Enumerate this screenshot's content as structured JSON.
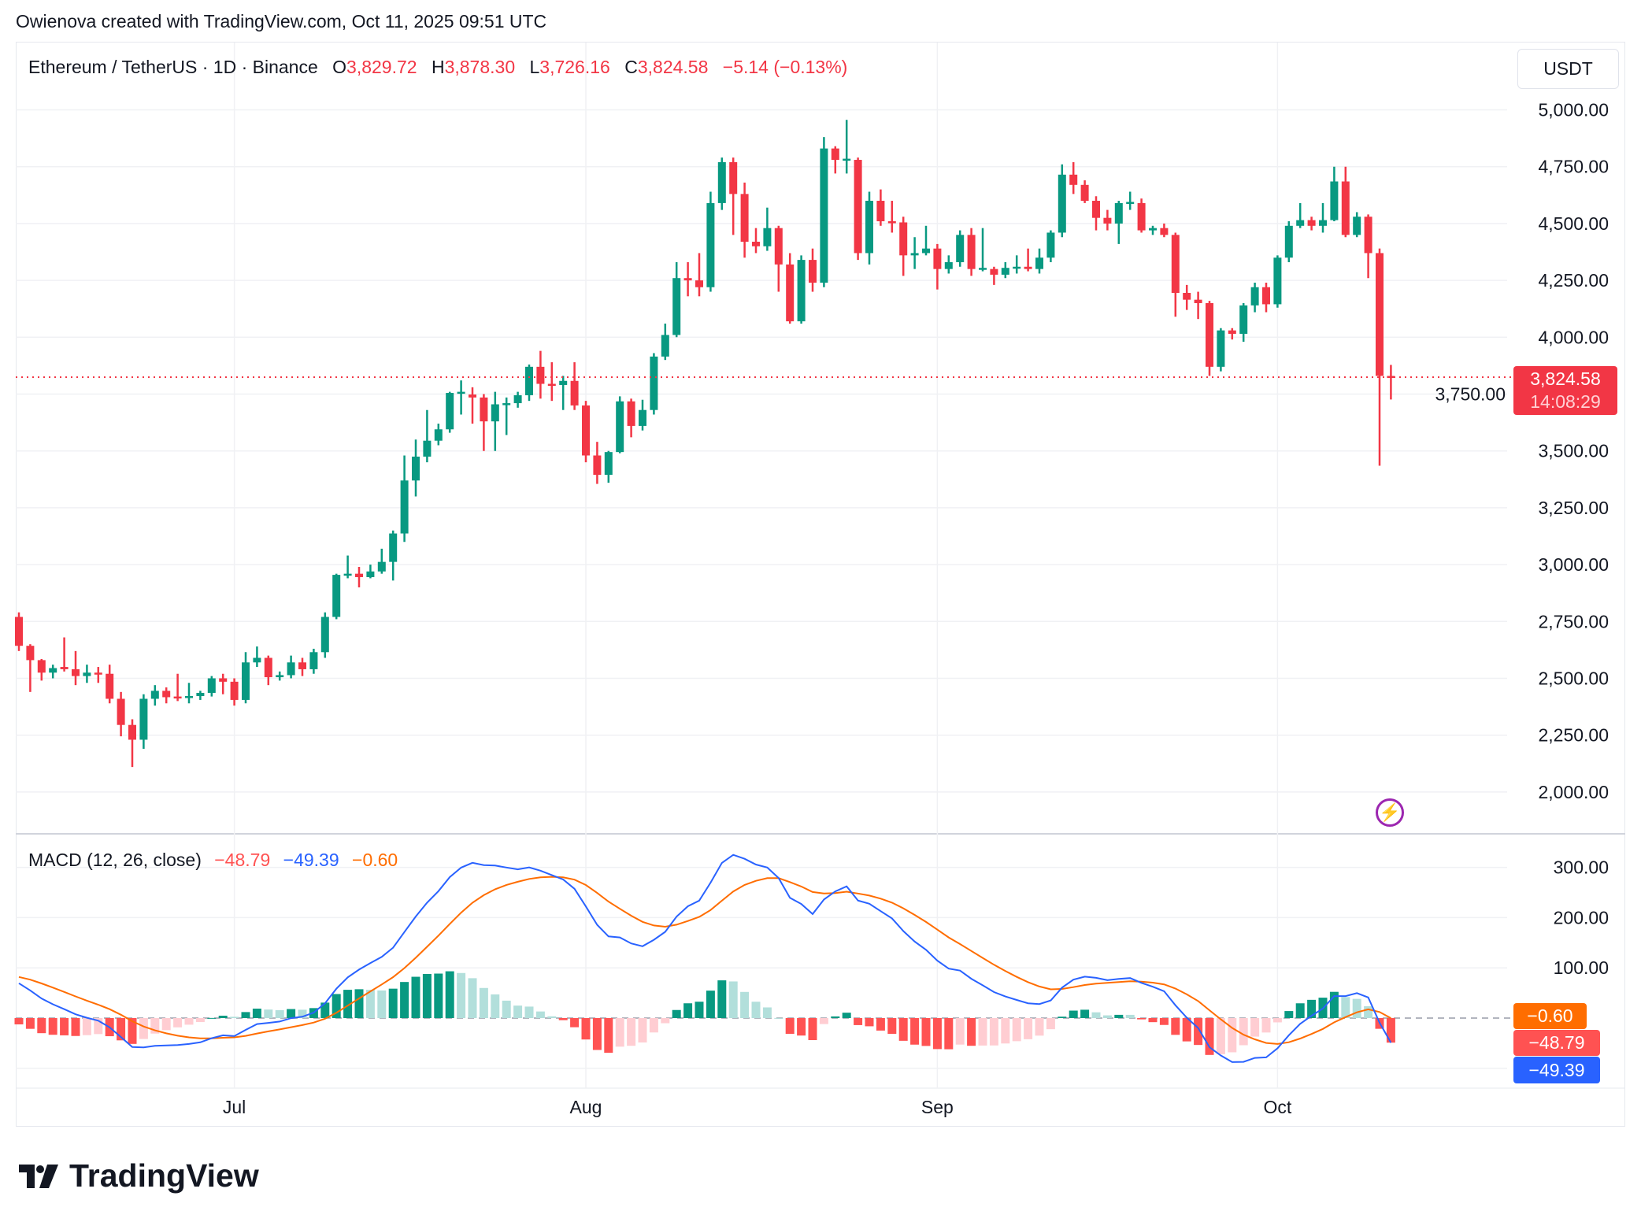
{
  "credit": "Owienova created with TradingView.com, Oct 11, 2025 09:51 UTC",
  "legend": {
    "symbol": "Ethereum / TetherUS · 1D · Binance",
    "o_label": "O",
    "o": "3,829.72",
    "h_label": "H",
    "h": "3,878.30",
    "l_label": "L",
    "l": "3,726.16",
    "c_label": "C",
    "c": "3,824.58",
    "change": "−5.14 (−0.13%)"
  },
  "unit": "USDT",
  "last_price": {
    "value": "3,824.58",
    "countdown": "14:08:29"
  },
  "macd": {
    "title": "MACD (12, 26, close)",
    "hist": "−48.79",
    "macd": "−49.39",
    "signal": "−0.60",
    "tags": {
      "signal": "−0.60",
      "hist": "−48.79",
      "macd": "−49.39"
    }
  },
  "brand": "TradingView",
  "colors": {
    "up": "#089981",
    "down": "#f23645",
    "up_light": "#b2dfdb",
    "down_light": "#ffcdd2",
    "down_hist": "#ff5252",
    "macd_line": "#2962ff",
    "signal_line": "#ff6d00",
    "price_line": "#f23645",
    "lightning": "#9c27b0"
  },
  "chart_data": {
    "type": "candlestick",
    "price_axis": {
      "ticks": [
        "5,000.00",
        "4,750.00",
        "4,500.00",
        "4,250.00",
        "4,000.00",
        "3,750.00",
        "3,500.00",
        "3,250.00",
        "3,000.00",
        "2,750.00",
        "2,500.00",
        "2,250.00",
        "2,000.00"
      ],
      "tick_values": [
        5000,
        4750,
        4500,
        4250,
        4000,
        3750,
        3500,
        3250,
        3000,
        2750,
        2500,
        2250,
        2000
      ],
      "range": [
        1860,
        5160
      ]
    },
    "macd_axis": {
      "ticks": [
        "300.00",
        "200.00",
        "100.00"
      ],
      "tick_values": [
        300,
        200,
        100
      ],
      "range": [
        -110,
        380
      ]
    },
    "x_ticks": [
      "Jul",
      "Aug",
      "Sep",
      "Oct"
    ],
    "grid": true,
    "ohlc": [
      [
        2770,
        2790,
        2620,
        2643
      ],
      [
        2643,
        2650,
        2440,
        2580
      ],
      [
        2580,
        2585,
        2490,
        2525
      ],
      [
        2525,
        2560,
        2500,
        2545
      ],
      [
        2550,
        2680,
        2530,
        2540
      ],
      [
        2540,
        2620,
        2470,
        2510
      ],
      [
        2510,
        2560,
        2480,
        2525
      ],
      [
        2525,
        2550,
        2480,
        2520
      ],
      [
        2520,
        2560,
        2390,
        2410
      ],
      [
        2410,
        2440,
        2245,
        2295
      ],
      [
        2295,
        2320,
        2110,
        2230
      ],
      [
        2230,
        2430,
        2190,
        2410
      ],
      [
        2410,
        2470,
        2380,
        2445
      ],
      [
        2445,
        2460,
        2390,
        2417
      ],
      [
        2420,
        2520,
        2400,
        2415
      ],
      [
        2415,
        2480,
        2390,
        2422
      ],
      [
        2422,
        2445,
        2405,
        2436
      ],
      [
        2436,
        2510,
        2420,
        2500
      ],
      [
        2500,
        2520,
        2430,
        2485
      ],
      [
        2485,
        2500,
        2380,
        2405
      ],
      [
        2405,
        2615,
        2390,
        2570
      ],
      [
        2570,
        2640,
        2550,
        2590
      ],
      [
        2590,
        2600,
        2470,
        2505
      ],
      [
        2505,
        2530,
        2490,
        2514
      ],
      [
        2514,
        2600,
        2500,
        2570
      ],
      [
        2570,
        2590,
        2510,
        2540
      ],
      [
        2540,
        2630,
        2520,
        2615
      ],
      [
        2615,
        2790,
        2590,
        2770
      ],
      [
        2770,
        2960,
        2760,
        2955
      ],
      [
        2955,
        3040,
        2940,
        2960
      ],
      [
        2960,
        2990,
        2900,
        2945
      ],
      [
        2945,
        3000,
        2940,
        2970
      ],
      [
        2970,
        3070,
        2960,
        3012
      ],
      [
        3012,
        3150,
        2930,
        3137
      ],
      [
        3137,
        3480,
        3100,
        3370
      ],
      [
        3370,
        3550,
        3300,
        3475
      ],
      [
        3475,
        3680,
        3450,
        3545
      ],
      [
        3545,
        3620,
        3525,
        3595
      ],
      [
        3595,
        3760,
        3580,
        3755
      ],
      [
        3755,
        3810,
        3660,
        3760
      ],
      [
        3748,
        3780,
        3620,
        3735
      ],
      [
        3735,
        3750,
        3500,
        3630
      ],
      [
        3630,
        3760,
        3500,
        3705
      ],
      [
        3705,
        3735,
        3570,
        3710
      ],
      [
        3710,
        3760,
        3690,
        3745
      ],
      [
        3745,
        3880,
        3720,
        3870
      ],
      [
        3870,
        3940,
        3730,
        3795
      ],
      [
        3795,
        3890,
        3720,
        3790
      ],
      [
        3790,
        3830,
        3680,
        3808
      ],
      [
        3808,
        3890,
        3680,
        3700
      ],
      [
        3700,
        3720,
        3450,
        3480
      ],
      [
        3480,
        3540,
        3355,
        3395
      ],
      [
        3395,
        3500,
        3360,
        3495
      ],
      [
        3495,
        3740,
        3490,
        3718
      ],
      [
        3718,
        3730,
        3560,
        3610
      ],
      [
        3610,
        3725,
        3590,
        3680
      ],
      [
        3680,
        3930,
        3660,
        3915
      ],
      [
        3915,
        4060,
        3900,
        4010
      ],
      [
        4010,
        4330,
        4000,
        4260
      ],
      [
        4260,
        4330,
        4180,
        4250
      ],
      [
        4250,
        4370,
        4180,
        4220
      ],
      [
        4220,
        4640,
        4200,
        4590
      ],
      [
        4590,
        4790,
        4560,
        4770
      ],
      [
        4770,
        4790,
        4450,
        4630
      ],
      [
        4630,
        4680,
        4350,
        4420
      ],
      [
        4420,
        4480,
        4370,
        4400
      ],
      [
        4400,
        4570,
        4380,
        4480
      ],
      [
        4480,
        4490,
        4200,
        4320
      ],
      [
        4320,
        4370,
        4060,
        4070
      ],
      [
        4070,
        4360,
        4060,
        4340
      ],
      [
        4340,
        4390,
        4200,
        4240
      ],
      [
        4240,
        4880,
        4220,
        4830
      ],
      [
        4830,
        4840,
        4720,
        4780
      ],
      [
        4780,
        4956,
        4720,
        4785
      ],
      [
        4780,
        4790,
        4340,
        4370
      ],
      [
        4370,
        4640,
        4320,
        4600
      ],
      [
        4600,
        4650,
        4490,
        4510
      ],
      [
        4510,
        4600,
        4460,
        4505
      ],
      [
        4505,
        4530,
        4270,
        4360
      ],
      [
        4360,
        4440,
        4300,
        4370
      ],
      [
        4370,
        4490,
        4360,
        4390
      ],
      [
        4390,
        4410,
        4210,
        4300
      ],
      [
        4300,
        4360,
        4280,
        4330
      ],
      [
        4330,
        4470,
        4310,
        4450
      ],
      [
        4450,
        4480,
        4270,
        4300
      ],
      [
        4300,
        4480,
        4290,
        4305
      ],
      [
        4300,
        4310,
        4230,
        4275
      ],
      [
        4275,
        4330,
        4260,
        4305
      ],
      [
        4305,
        4360,
        4280,
        4310
      ],
      [
        4310,
        4390,
        4290,
        4300
      ],
      [
        4300,
        4390,
        4280,
        4350
      ],
      [
        4350,
        4470,
        4330,
        4460
      ],
      [
        4460,
        4760,
        4440,
        4715
      ],
      [
        4715,
        4770,
        4630,
        4670
      ],
      [
        4670,
        4690,
        4590,
        4600
      ],
      [
        4600,
        4620,
        4470,
        4525
      ],
      [
        4525,
        4560,
        4470,
        4500
      ],
      [
        4500,
        4600,
        4410,
        4590
      ],
      [
        4590,
        4640,
        4560,
        4595
      ],
      [
        4590,
        4610,
        4460,
        4470
      ],
      [
        4470,
        4490,
        4450,
        4480
      ],
      [
        4480,
        4500,
        4440,
        4450
      ],
      [
        4450,
        4460,
        4090,
        4195
      ],
      [
        4195,
        4230,
        4120,
        4165
      ],
      [
        4165,
        4200,
        4080,
        4150
      ],
      [
        4150,
        4160,
        3830,
        3870
      ],
      [
        3870,
        4040,
        3850,
        4030
      ],
      [
        4030,
        4040,
        3990,
        4015
      ],
      [
        4015,
        4150,
        3980,
        4140
      ],
      [
        4140,
        4240,
        4110,
        4220
      ],
      [
        4220,
        4240,
        4110,
        4145
      ],
      [
        4145,
        4360,
        4130,
        4350
      ],
      [
        4350,
        4510,
        4330,
        4490
      ],
      [
        4490,
        4590,
        4480,
        4515
      ],
      [
        4515,
        4530,
        4470,
        4490
      ],
      [
        4490,
        4590,
        4460,
        4515
      ],
      [
        4515,
        4750,
        4510,
        4685
      ],
      [
        4685,
        4750,
        4440,
        4450
      ],
      [
        4450,
        4550,
        4440,
        4530
      ],
      [
        4530,
        4540,
        4260,
        4370
      ],
      [
        4370,
        4390,
        3435,
        3830
      ],
      [
        3829.72,
        3878.3,
        3726.16,
        3824.58
      ]
    ]
  }
}
